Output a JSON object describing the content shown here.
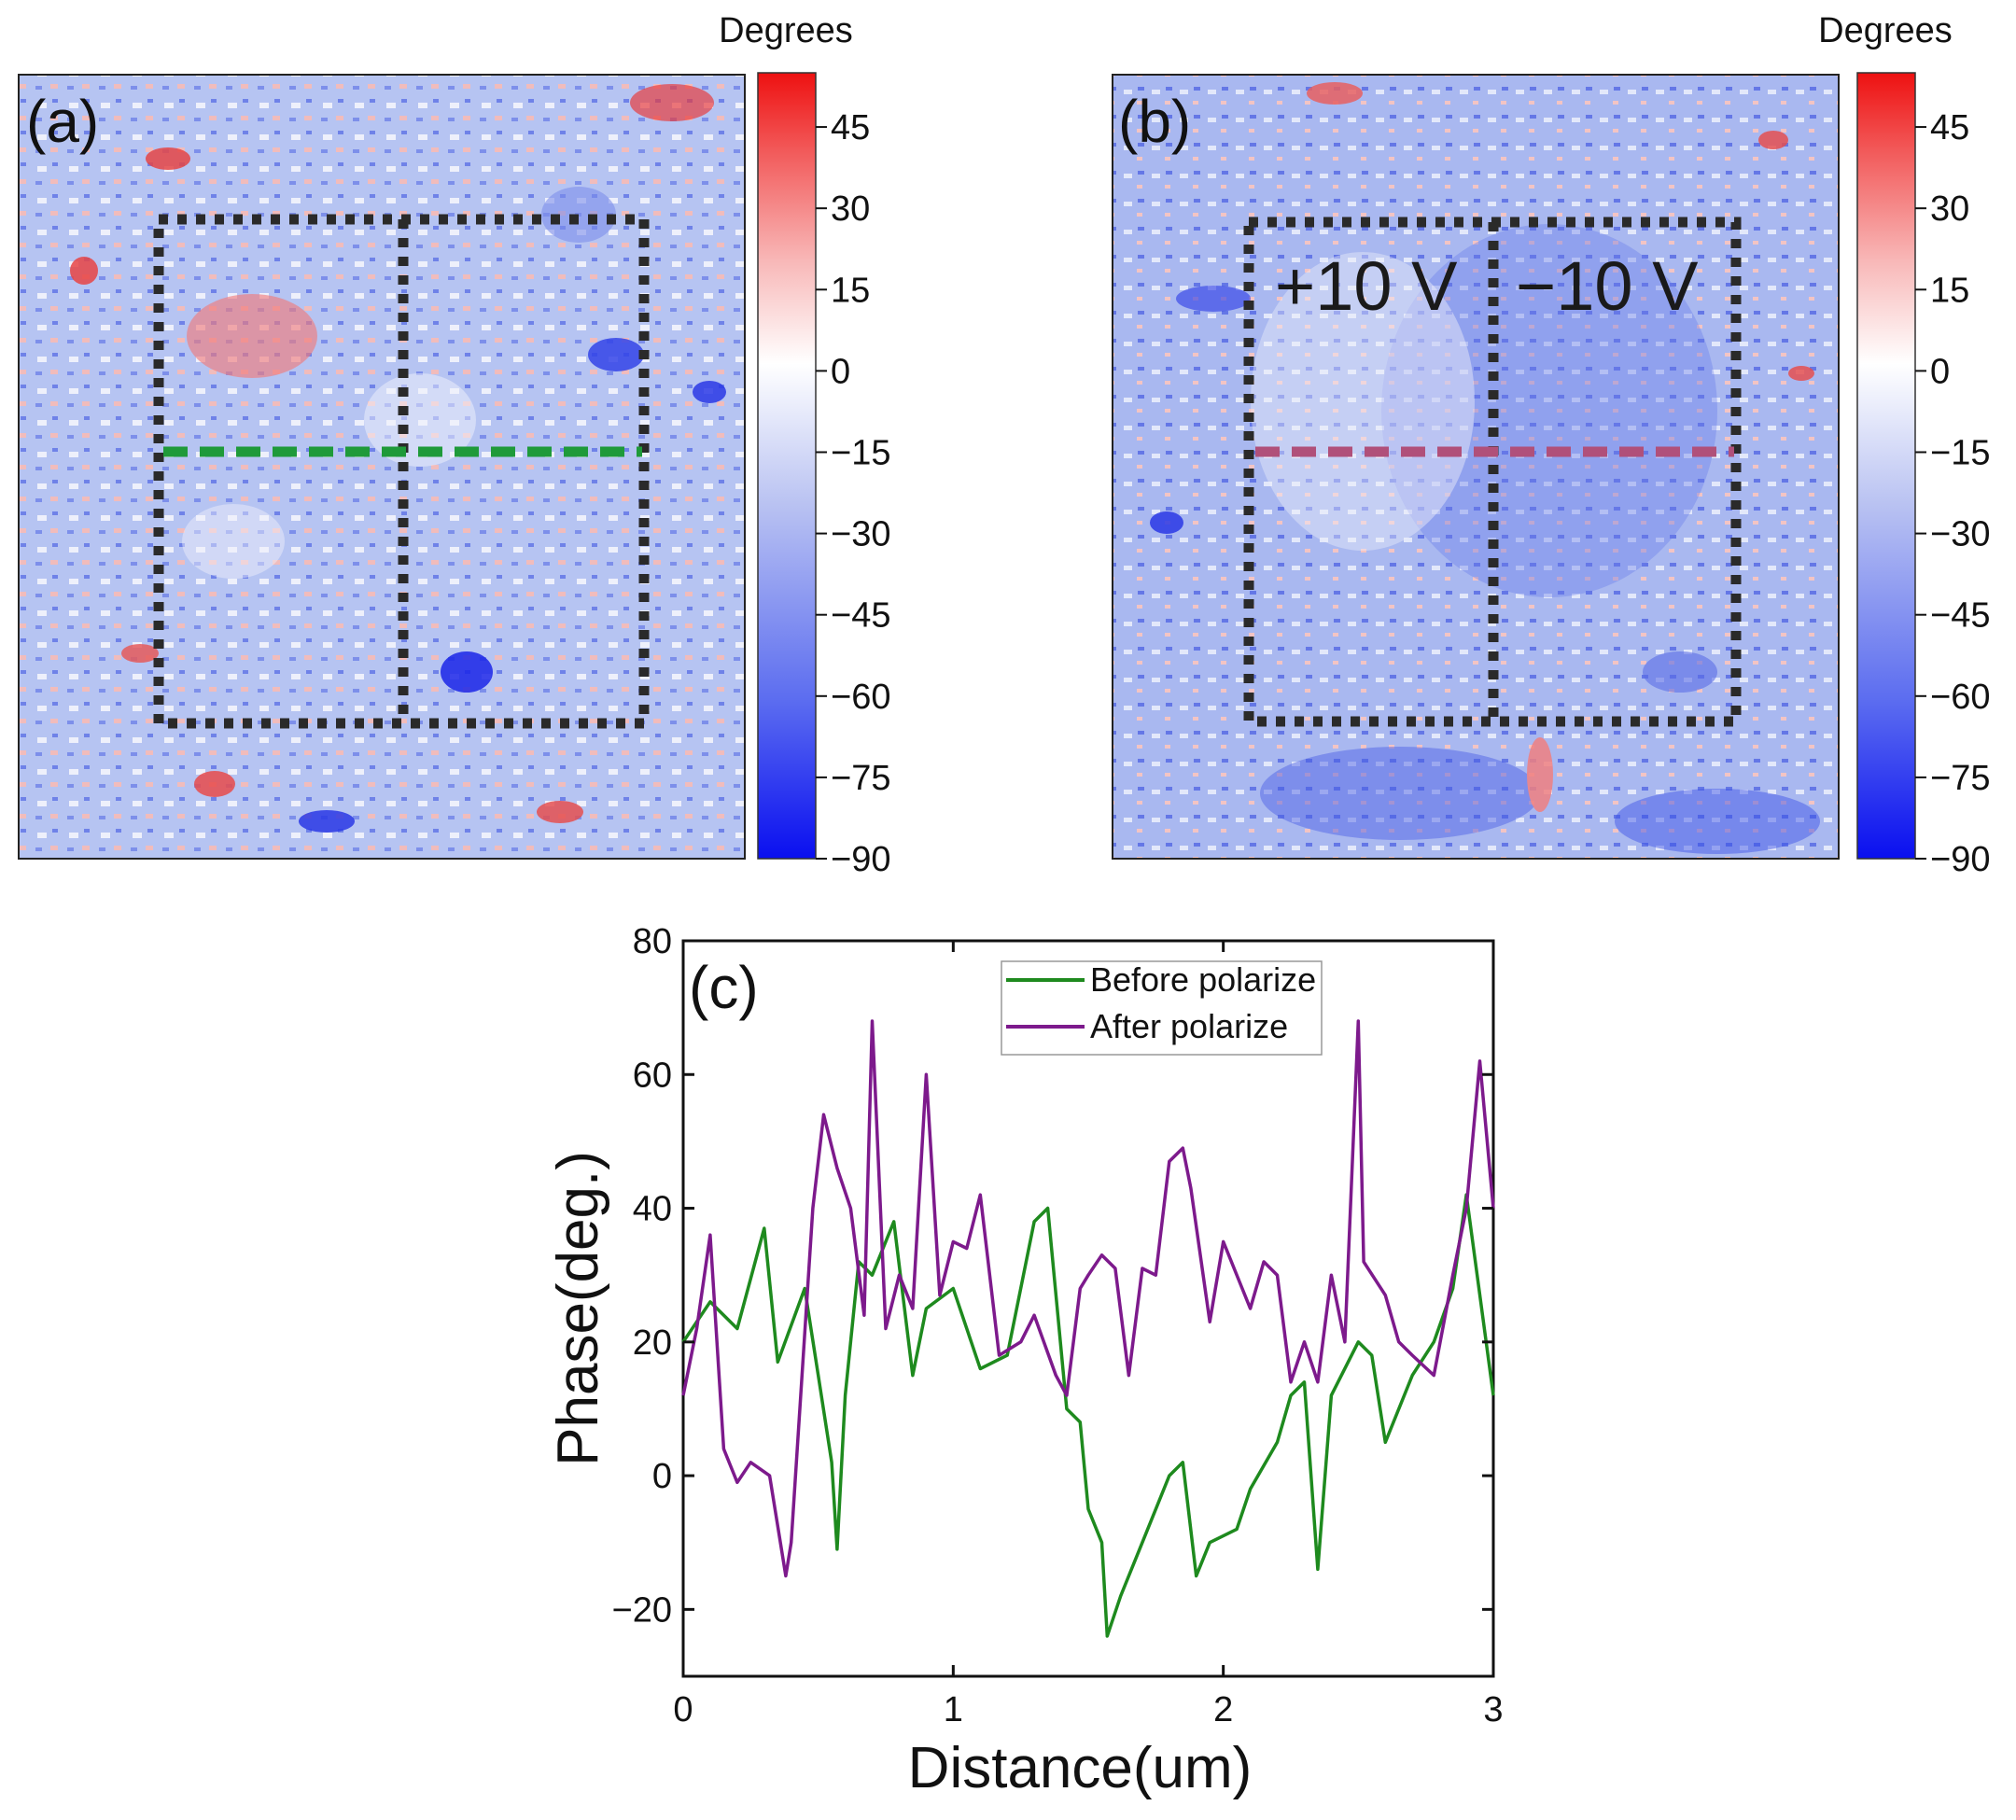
{
  "panels": {
    "a": {
      "label": "(a)",
      "colorbar_title": "Degrees",
      "colorbar_ticks": [
        "45",
        "30",
        "15",
        "0",
        "−15",
        "−30",
        "−45",
        "−60",
        "−75",
        "−90"
      ],
      "colorbar_range": [
        -90,
        55
      ],
      "line_color": "#1f9a3a"
    },
    "b": {
      "label": "(b)",
      "colorbar_title": "Degrees",
      "colorbar_ticks": [
        "45",
        "30",
        "15",
        "0",
        "−15",
        "−30",
        "−45",
        "−60",
        "−75",
        "−90"
      ],
      "colorbar_range": [
        -90,
        55
      ],
      "left_box_label": "+10 V",
      "right_box_label": "−10 V",
      "line_color": "#b0507a"
    }
  },
  "chart_data": {
    "type": "line",
    "panel_label": "(c)",
    "xlabel": "Distance(um)",
    "ylabel": "Phase(deg.)",
    "xlim": [
      0,
      3
    ],
    "ylim": [
      -30,
      80
    ],
    "xticks": [
      "0",
      "1",
      "2",
      "3"
    ],
    "yticks": [
      "−20",
      "0",
      "20",
      "40",
      "60",
      "80"
    ],
    "legend_position": "top-right",
    "series": [
      {
        "name": "Before polarize",
        "color": "#1e8a1e",
        "x": [
          0,
          0.1,
          0.2,
          0.3,
          0.35,
          0.45,
          0.5,
          0.55,
          0.57,
          0.6,
          0.65,
          0.7,
          0.78,
          0.85,
          0.9,
          1.0,
          1.1,
          1.2,
          1.3,
          1.35,
          1.42,
          1.47,
          1.5,
          1.55,
          1.57,
          1.62,
          1.7,
          1.8,
          1.85,
          1.9,
          1.95,
          2.05,
          2.1,
          2.2,
          2.25,
          2.3,
          2.35,
          2.4,
          2.5,
          2.55,
          2.6,
          2.7,
          2.78,
          2.85,
          2.9,
          3.0
        ],
        "values": [
          20,
          26,
          22,
          37,
          17,
          28,
          15,
          2,
          -11,
          12,
          32,
          30,
          38,
          15,
          25,
          28,
          16,
          18,
          38,
          40,
          10,
          8,
          -5,
          -10,
          -24,
          -18,
          -10,
          0,
          2,
          -15,
          -10,
          -8,
          -2,
          5,
          12,
          14,
          -14,
          12,
          20,
          18,
          5,
          15,
          20,
          28,
          42,
          12
        ]
      },
      {
        "name": "After polarize",
        "color": "#7d1a8c",
        "x": [
          0,
          0.05,
          0.1,
          0.15,
          0.2,
          0.25,
          0.32,
          0.38,
          0.4,
          0.48,
          0.52,
          0.57,
          0.62,
          0.67,
          0.7,
          0.75,
          0.8,
          0.85,
          0.9,
          0.95,
          1.0,
          1.05,
          1.1,
          1.17,
          1.25,
          1.3,
          1.38,
          1.42,
          1.47,
          1.5,
          1.55,
          1.6,
          1.65,
          1.7,
          1.75,
          1.8,
          1.85,
          1.88,
          1.95,
          2.0,
          2.1,
          2.15,
          2.2,
          2.25,
          2.3,
          2.35,
          2.4,
          2.45,
          2.5,
          2.52,
          2.6,
          2.65,
          2.7,
          2.78,
          2.85,
          2.9,
          2.95,
          3.0
        ],
        "values": [
          12,
          22,
          36,
          4,
          -1,
          2,
          0,
          -15,
          -10,
          40,
          54,
          46,
          40,
          24,
          68,
          22,
          30,
          25,
          60,
          27,
          35,
          34,
          42,
          18,
          20,
          24,
          15,
          12,
          28,
          30,
          33,
          31,
          15,
          31,
          30,
          47,
          49,
          43,
          23,
          35,
          25,
          32,
          30,
          14,
          20,
          14,
          30,
          20,
          68,
          32,
          27,
          20,
          18,
          15,
          30,
          40,
          62,
          40
        ]
      }
    ]
  }
}
